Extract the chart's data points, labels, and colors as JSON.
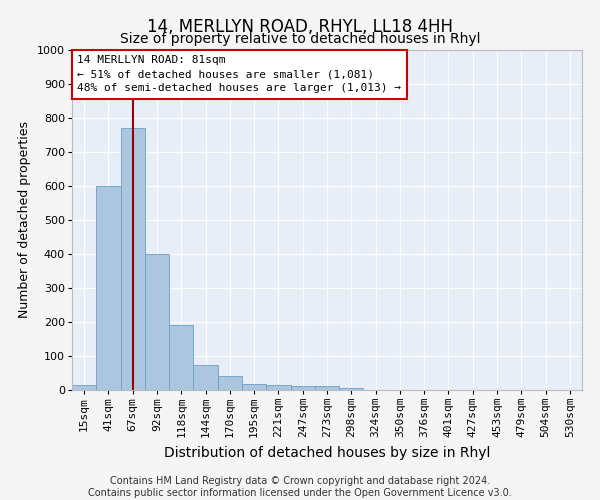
{
  "title": "14, MERLLYN ROAD, RHYL, LL18 4HH",
  "subtitle": "Size of property relative to detached houses in Rhyl",
  "xlabel": "Distribution of detached houses by size in Rhyl",
  "ylabel": "Number of detached properties",
  "categories": [
    "15sqm",
    "41sqm",
    "67sqm",
    "92sqm",
    "118sqm",
    "144sqm",
    "170sqm",
    "195sqm",
    "221sqm",
    "247sqm",
    "273sqm",
    "298sqm",
    "324sqm",
    "350sqm",
    "376sqm",
    "401sqm",
    "427sqm",
    "453sqm",
    "479sqm",
    "504sqm",
    "530sqm"
  ],
  "values": [
    15,
    600,
    770,
    400,
    190,
    75,
    40,
    18,
    15,
    12,
    12,
    5,
    0,
    0,
    0,
    0,
    0,
    0,
    0,
    0,
    0
  ],
  "bar_color": "#adc6e0",
  "bar_edge_color": "#6aa0c8",
  "vline_x": 2,
  "vline_color": "#990000",
  "ylim": [
    0,
    1000
  ],
  "yticks": [
    0,
    100,
    200,
    300,
    400,
    500,
    600,
    700,
    800,
    900,
    1000
  ],
  "annotation_box_text": "14 MERLLYN ROAD: 81sqm\n← 51% of detached houses are smaller (1,081)\n48% of semi-detached houses are larger (1,013) →",
  "annotation_box_color": "#cc0000",
  "footer": "Contains HM Land Registry data © Crown copyright and database right 2024.\nContains public sector information licensed under the Open Government Licence v3.0.",
  "fig_facecolor": "#f5f5f5",
  "background_color": "#e8eef8",
  "grid_color": "#ffffff",
  "title_fontsize": 12,
  "subtitle_fontsize": 10,
  "xlabel_fontsize": 10,
  "ylabel_fontsize": 9,
  "tick_fontsize": 8,
  "footer_fontsize": 7,
  "annotation_fontsize": 8
}
